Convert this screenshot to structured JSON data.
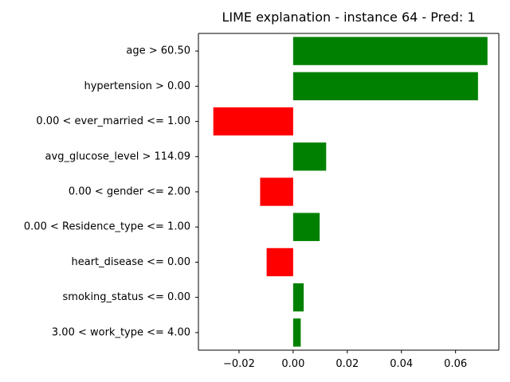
{
  "chart_data": {
    "type": "bar",
    "orientation": "horizontal",
    "title": "LIME explanation - instance 64 - Pred: 1",
    "xlabel": "",
    "ylabel": "",
    "categories": [
      "age > 60.50",
      "hypertension > 0.00",
      "0.00 < ever_married <= 1.00",
      "avg_glucose_level > 114.09",
      "0.00 < gender <= 2.00",
      "0.00 < Residence_type <= 1.00",
      "heart_disease <= 0.00",
      "smoking_status <= 0.00",
      "3.00 < work_type <= 4.00"
    ],
    "values": [
      0.0718,
      0.0683,
      -0.0295,
      0.0122,
      -0.0122,
      0.0098,
      -0.0098,
      0.0039,
      0.0028
    ],
    "xlim": [
      -0.035,
      0.076
    ],
    "xticks": [
      -0.02,
      0.0,
      0.02,
      0.04,
      0.06
    ],
    "xtick_labels": [
      "−0.02",
      "0.00",
      "0.02",
      "0.04",
      "0.06"
    ],
    "grid": false,
    "legend": "none",
    "colors": {
      "positive": "#008000",
      "negative": "#ff0000",
      "axis": "#000000"
    }
  }
}
